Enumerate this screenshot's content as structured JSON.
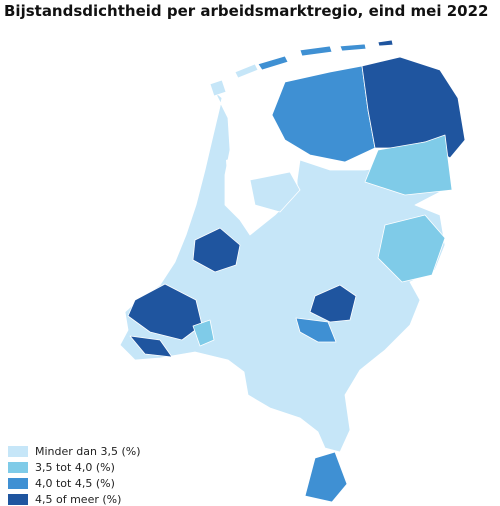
{
  "title": "Bijstandsdichtheid per arbeidsmarktregio, eind mei 2022",
  "legend": [
    {
      "label": "Minder dan 3,5 (%)",
      "color": "#c6e6f8"
    },
    {
      "label": "3,5 tot 4,0 (%)",
      "color": "#7fcbe8"
    },
    {
      "label": "4,0 tot 4,5 (%)",
      "color": "#3f90d3"
    },
    {
      "label": "4,5 of meer (%)",
      "color": "#1f559f"
    }
  ]
}
